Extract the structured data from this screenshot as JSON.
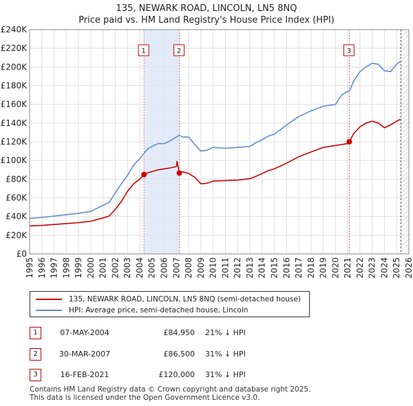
{
  "title_line1": "135, NEWARK ROAD, LINCOLN, LN5 8NQ",
  "title_line2": "Price paid vs. HM Land Registry's House Price Index (HPI)",
  "colors": {
    "red": "#cc0000",
    "blue": "#5b8ed0",
    "shade": "#dce6f7",
    "grid": "#dddddd",
    "marker_border": "#cc0000"
  },
  "chart_data": {
    "type": "line",
    "title": "Price paid vs. HM Land Registry's House Price Index (HPI)",
    "xlabel": "",
    "ylabel": "",
    "xlim": [
      1995.0,
      2026.0
    ],
    "ylim": [
      0,
      240000
    ],
    "xticks": [
      "1995",
      "1996",
      "1997",
      "1998",
      "1999",
      "2000",
      "2001",
      "2002",
      "2003",
      "2004",
      "2005",
      "2006",
      "2007",
      "2008",
      "2009",
      "2010",
      "2011",
      "2012",
      "2013",
      "2014",
      "2015",
      "2016",
      "2017",
      "2018",
      "2019",
      "2020",
      "2021",
      "2022",
      "2023",
      "2024",
      "2025",
      "2026"
    ],
    "yticks": [
      "£0",
      "£20K",
      "£40K",
      "£60K",
      "£80K",
      "£100K",
      "£120K",
      "£140K",
      "£160K",
      "£180K",
      "£200K",
      "£220K",
      "£240K"
    ],
    "series": [
      {
        "name": "HPI: Average price, semi-detached house, Lincoln",
        "x": [
          1995.0,
          1996.0,
          1997.0,
          1998.0,
          1999.0,
          2000.0,
          2001.0,
          2001.5,
          2002.0,
          2002.5,
          2003.0,
          2003.5,
          2004.0,
          2004.35,
          2004.7,
          2005.0,
          2005.5,
          2006.0,
          2006.5,
          2007.0,
          2007.25,
          2007.5,
          2008.0,
          2008.5,
          2009.0,
          2009.5,
          2010.0,
          2011.0,
          2012.0,
          2013.0,
          2013.5,
          2014.0,
          2014.5,
          2015.0,
          2016.0,
          2017.0,
          2018.0,
          2019.0,
          2020.0,
          2020.5,
          2021.0,
          2021.13,
          2021.5,
          2022.0,
          2022.5,
          2023.0,
          2023.5,
          2024.0,
          2024.5,
          2025.0,
          2025.3
        ],
        "values": [
          38000,
          39000,
          40500,
          42000,
          43500,
          45500,
          52000,
          55000,
          65000,
          75000,
          84000,
          95000,
          102000,
          107500,
          113000,
          115000,
          118000,
          118000,
          121000,
          125000,
          127000,
          125000,
          125000,
          117000,
          110000,
          111000,
          114000,
          113000,
          114000,
          115000,
          119000,
          122000,
          126000,
          128000,
          138000,
          147000,
          153000,
          158000,
          160000,
          170000,
          174000,
          174000,
          185000,
          195000,
          200000,
          204000,
          203000,
          196000,
          195000,
          203000,
          206000
        ]
      },
      {
        "name": "135, NEWARK ROAD, LINCOLN, LN5 8NQ (semi-detached house)",
        "x": [
          1995.0,
          1996.0,
          1997.0,
          1998.0,
          1999.0,
          2000.0,
          2001.0,
          2001.5,
          2002.0,
          2002.5,
          2003.0,
          2003.5,
          2004.0,
          2004.35,
          2004.7,
          2005.0,
          2005.5,
          2006.0,
          2006.5,
          2007.0,
          2007.05,
          2007.24,
          2007.5,
          2008.0,
          2008.5,
          2009.0,
          2009.5,
          2010.0,
          2011.0,
          2012.0,
          2013.0,
          2013.5,
          2014.0,
          2014.5,
          2015.0,
          2016.0,
          2017.0,
          2018.0,
          2019.0,
          2020.0,
          2020.5,
          2021.0,
          2021.13,
          2021.5,
          2022.0,
          2022.5,
          2023.0,
          2023.5,
          2024.0,
          2024.5,
          2025.0,
          2025.3
        ],
        "values": [
          30000,
          30500,
          31500,
          32500,
          33500,
          35000,
          38500,
          40500,
          47500,
          56000,
          67000,
          75000,
          80000,
          84950,
          87000,
          88000,
          90000,
          91000,
          92000,
          93500,
          99000,
          86500,
          88000,
          86000,
          82000,
          75000,
          75500,
          78000,
          78500,
          79000,
          80500,
          83000,
          86000,
          89000,
          91000,
          97000,
          104000,
          109000,
          114000,
          116000,
          117000,
          118000,
          120000,
          129000,
          136000,
          140000,
          142000,
          140000,
          135000,
          138000,
          142000,
          144000
        ]
      }
    ],
    "shaded_ranges": [
      [
        2004.35,
        2007.24
      ]
    ],
    "vlines": [
      2004.35,
      2007.24,
      2021.13,
      2025.35
    ],
    "events": [
      {
        "label": "1",
        "x": 2004.35,
        "value": 84950
      },
      {
        "label": "2",
        "x": 2007.24,
        "value": 86500
      },
      {
        "label": "3",
        "x": 2021.13,
        "value": 120000
      }
    ],
    "hatched_from": 2025.35
  },
  "legend": {
    "red_label": "135, NEWARK ROAD, LINCOLN, LN5 8NQ (semi-detached house)",
    "blue_label": "HPI: Average price, semi-detached house, Lincoln"
  },
  "transactions": [
    {
      "num": "1",
      "date": "07-MAY-2004",
      "price": "£84,950",
      "hpi": "21% ↓ HPI"
    },
    {
      "num": "2",
      "date": "30-MAR-2007",
      "price": "£86,500",
      "hpi": "31% ↓ HPI"
    },
    {
      "num": "3",
      "date": "16-FEB-2021",
      "price": "£120,000",
      "hpi": "31% ↓ HPI"
    }
  ],
  "footer_line1": "Contains HM Land Registry data © Crown copyright and database right 2025.",
  "footer_line2": "This data is licensed under the Open Government Licence v3.0."
}
